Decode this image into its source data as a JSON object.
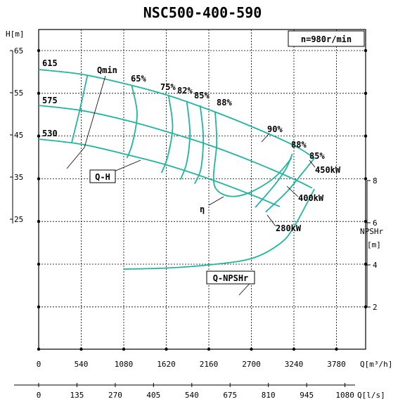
{
  "chart_data": {
    "type": "line",
    "title": "NSC500-400-590",
    "speed_note": "n=980r/min",
    "curve_color": "#1fb5a0",
    "head_axis": {
      "label": "H[m]",
      "range": [
        25,
        65
      ],
      "ticks": [
        "65",
        "55",
        "45",
        "35",
        "25"
      ]
    },
    "npsh_axis": {
      "label_line1": "NPSHr",
      "label_line2": "[m]",
      "range": [
        2,
        8
      ],
      "ticks": [
        "8",
        "6",
        "4",
        "2"
      ]
    },
    "x_axis_m3h": {
      "label": "Q[m³/h]",
      "range": [
        0,
        4320
      ],
      "ticks": [
        "0",
        "540",
        "1080",
        "1620",
        "2160",
        "2700",
        "3240",
        "3780"
      ]
    },
    "x_axis_ls": {
      "label": "Q[l/s]",
      "range": [
        0,
        1200
      ],
      "ticks": [
        "0",
        "135",
        "270",
        "405",
        "540",
        "675",
        "810",
        "945",
        "1080"
      ]
    },
    "impeller_labels": [
      "615",
      "575",
      "530"
    ],
    "series": [
      {
        "name": "615",
        "x": [
          0,
          540,
          1080,
          1620,
          2160,
          2700,
          3240,
          3500
        ],
        "y": [
          60.5,
          59.4,
          57.2,
          54.5,
          51.0,
          47.0,
          42.5,
          39.5
        ]
      },
      {
        "name": "575",
        "x": [
          0,
          540,
          1080,
          1620,
          2160,
          2700,
          3240,
          3470
        ],
        "y": [
          52.0,
          50.8,
          48.6,
          45.8,
          42.6,
          38.8,
          34.5,
          32.4
        ]
      },
      {
        "name": "530",
        "x": [
          0,
          540,
          1080,
          1620,
          2160,
          2700,
          3060
        ],
        "y": [
          44.0,
          42.8,
          40.5,
          37.9,
          34.6,
          30.8,
          28.0
        ]
      },
      {
        "name": "Q-NPSHr",
        "axis": "npsh",
        "x": [
          1080,
          1620,
          2160,
          2700,
          3060,
          3240,
          3500
        ],
        "y": [
          3.8,
          3.85,
          4.0,
          4.3,
          5.0,
          5.8,
          7.6
        ]
      }
    ],
    "efficiency_contours": [
      {
        "label": "65%",
        "x": [
          1180,
          1250,
          1190,
          1120
        ],
        "y": [
          56.8,
          50.0,
          43.0,
          39.5
        ]
      },
      {
        "label": "75%",
        "x": [
          1650,
          1700,
          1640,
          1560
        ],
        "y": [
          54.2,
          47.0,
          40.0,
          36.0
        ]
      },
      {
        "label": "82%",
        "x": [
          1880,
          1920,
          1880,
          1800
        ],
        "y": [
          53.0,
          45.5,
          38.5,
          34.4
        ]
      },
      {
        "label": "85%",
        "x": [
          2050,
          2090,
          2060,
          1980
        ],
        "y": [
          52.0,
          44.4,
          37.0,
          33.4
        ]
      },
      {
        "label": "88%",
        "x": [
          2240,
          2260,
          2220,
          2270,
          2450,
          2700,
          3000,
          3210
        ],
        "y": [
          50.5,
          43.0,
          35.0,
          31.8,
          30.4,
          31.5,
          35.0,
          39.5
        ]
      },
      {
        "label": "88%",
        "x": [
          3220,
          3140,
          2990,
          2750
        ],
        "y": [
          40.5,
          37.0,
          33.0,
          27.8
        ]
      },
      {
        "label": "85%",
        "x": [
          3500,
          3350,
          3150,
          2880
        ],
        "y": [
          39.5,
          36.0,
          31.5,
          26.7
        ]
      }
    ],
    "efficiency_extra_labels": [
      "90%",
      "η"
    ],
    "power_labels": [
      "450kW",
      "400kW",
      "280kW"
    ],
    "curve_labels": [
      "Qmin",
      "Q-H",
      "Q-NPSHr"
    ]
  }
}
